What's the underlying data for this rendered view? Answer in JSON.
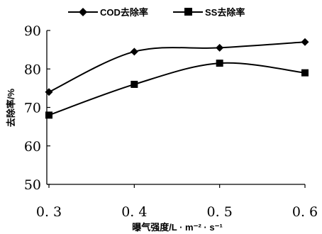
{
  "chart_data": {
    "type": "line",
    "x": [
      0.3,
      0.4,
      0.5,
      0.6
    ],
    "x_tick_labels": [
      "0. 3",
      "0. 4",
      "0. 5",
      "0. 6"
    ],
    "y_ticks": [
      50,
      60,
      70,
      80,
      90
    ],
    "ylim": [
      50,
      90
    ],
    "xlabel": "曝气强度/L · m⁻² · s⁻¹",
    "ylabel": "去除率/%",
    "legend_position": "top",
    "grid": false,
    "series": [
      {
        "name": "COD去除率",
        "marker": "diamond",
        "color": "#000000",
        "values": [
          74,
          84.5,
          85.5,
          87
        ]
      },
      {
        "name": "SS去除率",
        "marker": "square",
        "color": "#000000",
        "values": [
          68,
          76,
          81.5,
          79
        ]
      }
    ]
  }
}
